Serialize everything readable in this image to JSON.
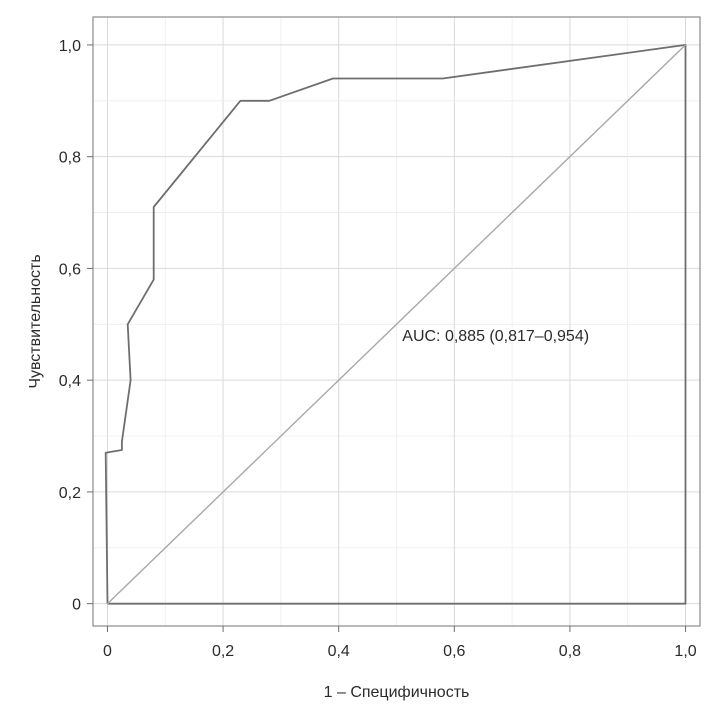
{
  "chart_data": {
    "type": "line",
    "xlabel": "1 – Специфичность",
    "ylabel": "Чувствительность",
    "xlim": [
      -0.025,
      1.025
    ],
    "ylim": [
      -0.04,
      1.05
    ],
    "x_ticks": [
      0,
      0.2,
      0.4,
      0.6,
      0.8,
      1.0
    ],
    "x_tick_labels": [
      "0",
      "0,2",
      "0,4",
      "0,6",
      "0,8",
      "1,0"
    ],
    "y_ticks": [
      0,
      0.2,
      0.4,
      0.6,
      0.8,
      1.0
    ],
    "y_tick_labels": [
      "0",
      "0,2",
      "0,4",
      "0,6",
      "0,8",
      "1,0"
    ],
    "grid": true,
    "annotation": {
      "text": "AUC: 0,885 (0,817–0,954)",
      "x": 0.51,
      "y": 0.47
    },
    "series": [
      {
        "x": [
          0,
          -0.003,
          0.025,
          0.025,
          0.04,
          0.035,
          0.08,
          0.08,
          0.23,
          0.28,
          0.39,
          0.58,
          1.0,
          1.0,
          0
        ],
        "y": [
          0,
          0.27,
          0.275,
          0.29,
          0.4,
          0.5,
          0.58,
          0.71,
          0.9,
          0.9,
          0.94,
          0.94,
          1.0,
          0,
          0
        ],
        "color": "#6e6e6e"
      },
      {
        "x": [
          0,
          1.0
        ],
        "y": [
          0,
          1.0
        ],
        "color": "#a8a8a8"
      }
    ]
  }
}
